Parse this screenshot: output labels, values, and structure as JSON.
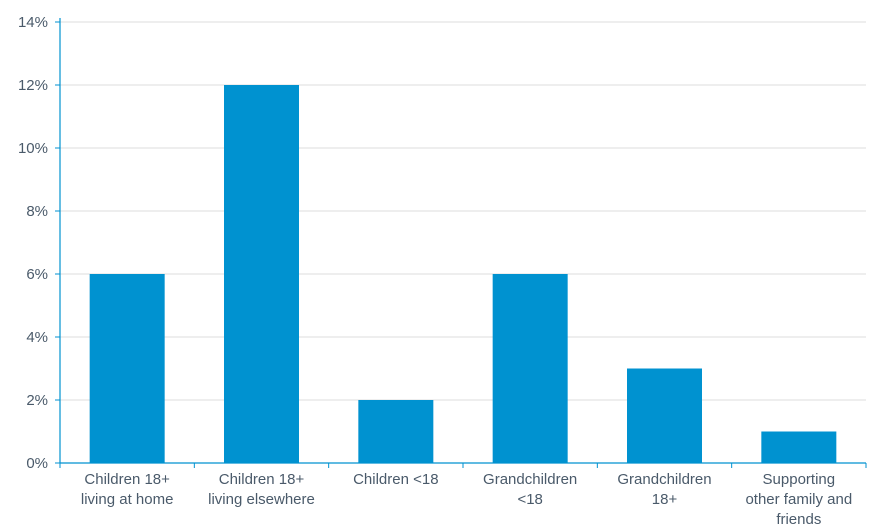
{
  "chart_data": {
    "type": "bar",
    "categories": [
      [
        "Children 18+",
        "living at home"
      ],
      [
        "Children 18+",
        "living elsewhere"
      ],
      [
        "Children <18"
      ],
      [
        "Grandchildren",
        "<18"
      ],
      [
        "Grandchildren",
        "18+"
      ],
      [
        "Supporting",
        "other family and",
        "friends"
      ]
    ],
    "values": [
      6,
      12,
      2,
      6,
      3,
      1
    ],
    "ylim": [
      0,
      14
    ],
    "yticks": [
      0,
      2,
      4,
      6,
      8,
      10,
      12,
      14
    ],
    "ytick_labels": [
      "0%",
      "2%",
      "4%",
      "6%",
      "8%",
      "10%",
      "12%",
      "14%"
    ],
    "title": "",
    "xlabel": "",
    "ylabel": "",
    "grid": true,
    "colors": {
      "bar": "#0092d0",
      "grid": "#dcdcdc",
      "axis": "#0092d0",
      "text": "#4a5a6a"
    }
  }
}
